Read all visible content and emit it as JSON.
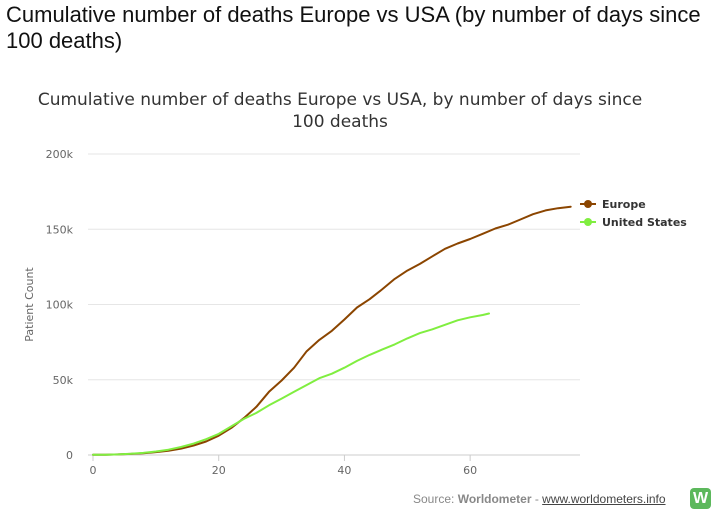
{
  "page": {
    "heading": "Cumulative number of deaths Europe vs USA (by number of days since 100 deaths)"
  },
  "source": {
    "prefix": "Source: ",
    "name": "Worldometer",
    "separator": " - ",
    "link_text": "www.worldometers.info",
    "logo_letter": "W"
  },
  "chart_data": {
    "type": "line",
    "title_lines": [
      "Cumulative number of deaths Europe vs USA, by number of days since",
      "100 deaths"
    ],
    "xlabel": "",
    "ylabel": "Patient Count",
    "xlim": [
      0,
      77
    ],
    "ylim": [
      0,
      200000
    ],
    "x_ticks": [
      0,
      20,
      40,
      60
    ],
    "x_tick_labels": [
      "0",
      "20",
      "40",
      "60"
    ],
    "y_ticks": [
      0,
      50000,
      100000,
      150000,
      200000
    ],
    "y_tick_labels": [
      "0",
      "50k",
      "100k",
      "150k",
      "200k"
    ],
    "grid": "horizontal",
    "legend_position": "right",
    "series": [
      {
        "name": "Europe",
        "color": "#8B4500",
        "x": [
          0,
          2,
          4,
          6,
          8,
          10,
          12,
          14,
          16,
          18,
          20,
          22,
          24,
          26,
          28,
          30,
          32,
          34,
          36,
          38,
          40,
          42,
          44,
          46,
          48,
          50,
          52,
          54,
          56,
          58,
          60,
          62,
          64,
          66,
          68,
          70,
          72,
          74,
          76
        ],
        "y": [
          100,
          200,
          400,
          700,
          1200,
          1900,
          2800,
          4200,
          6300,
          9000,
          12800,
          18000,
          24500,
          32000,
          42000,
          49500,
          58000,
          69000,
          76500,
          82500,
          90000,
          98000,
          103500,
          110000,
          117000,
          122500,
          127000,
          132000,
          137000,
          140500,
          143500,
          147000,
          150500,
          153000,
          156500,
          160000,
          162500,
          164000,
          165000
        ]
      },
      {
        "name": "United States",
        "color": "#80EE40",
        "x": [
          0,
          2,
          4,
          6,
          8,
          10,
          12,
          14,
          16,
          18,
          20,
          22,
          24,
          26,
          28,
          30,
          32,
          34,
          36,
          38,
          40,
          42,
          44,
          46,
          48,
          50,
          52,
          54,
          56,
          58,
          60,
          62,
          63
        ],
        "y": [
          100,
          200,
          400,
          800,
          1400,
          2300,
          3500,
          5300,
          7600,
          10500,
          14000,
          19000,
          24000,
          28000,
          33000,
          37500,
          42000,
          46500,
          51000,
          54000,
          58000,
          62500,
          66500,
          70000,
          73500,
          77500,
          81000,
          83500,
          86500,
          89500,
          91500,
          93000,
          94000
        ]
      }
    ]
  }
}
